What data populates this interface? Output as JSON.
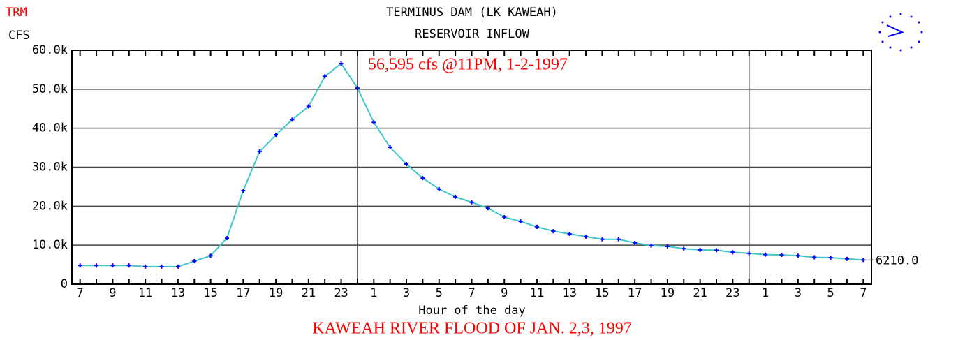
{
  "chart_data": {
    "type": "line",
    "station": "TRM",
    "title": "TERMINUS DAM (LK KAWEAH)",
    "subtitle": "RESERVOIR INFLOW",
    "y_label": "CFS",
    "x_label": "Hour of the day",
    "caption": "KAWEAH RIVER FLOOD OF JAN. 2,3, 1997",
    "annotation": "56,595 cfs @11PM, 1-2-1997",
    "categories": [
      "7",
      null,
      "9",
      null,
      "11",
      null,
      "13",
      null,
      "15",
      null,
      "17",
      null,
      "19",
      null,
      "21",
      null,
      "23",
      null,
      "1",
      null,
      "3",
      null,
      "5",
      null,
      "7",
      null,
      "9",
      null,
      "11",
      null,
      "13",
      null,
      "15",
      null,
      "17",
      null,
      "19",
      null,
      "21",
      null,
      "23",
      null,
      "1",
      null,
      "3",
      null,
      "5",
      null,
      "7"
    ],
    "series": [
      {
        "name": "RESERVOIR INFLOW",
        "color": "#40c8c8",
        "marker_color": "#0000ff",
        "values": [
          4800,
          4800,
          4800,
          4800,
          4500,
          4500,
          4500,
          5900,
          7300,
          11800,
          24000,
          34000,
          38300,
          42200,
          45600,
          53300,
          56595,
          50300,
          41500,
          35100,
          30800,
          27200,
          24400,
          22400,
          21000,
          19500,
          17200,
          16100,
          14700,
          13600,
          12900,
          12200,
          11500,
          11500,
          10600,
          9900,
          9700,
          9100,
          8800,
          8700,
          8200,
          7900,
          7600,
          7500,
          7300,
          6900,
          6800,
          6500,
          6210
        ],
        "value_labels": [
          null,
          null,
          null,
          null,
          null,
          null,
          null,
          null,
          null,
          null,
          null,
          null,
          null,
          null,
          null,
          null,
          null,
          null,
          null,
          null,
          null,
          null,
          null,
          null,
          null,
          null,
          null,
          null,
          null,
          null,
          null,
          null,
          null,
          null,
          null,
          null,
          null,
          null,
          null,
          null,
          null,
          null,
          null,
          null,
          null,
          null,
          null,
          null,
          "6210.0"
        ]
      }
    ],
    "ylim": [
      0,
      60000
    ],
    "yticks": [
      0,
      {
        "value": 10000,
        "label": "10.0k"
      },
      {
        "value": 20000,
        "label": "20.0k"
      },
      {
        "value": 30000,
        "label": "30.0k"
      },
      {
        "value": 40000,
        "label": "40.0k"
      },
      {
        "value": 50000,
        "label": "50.0k"
      },
      {
        "value": 60000,
        "label": "60.0k"
      }
    ],
    "grid": true
  }
}
